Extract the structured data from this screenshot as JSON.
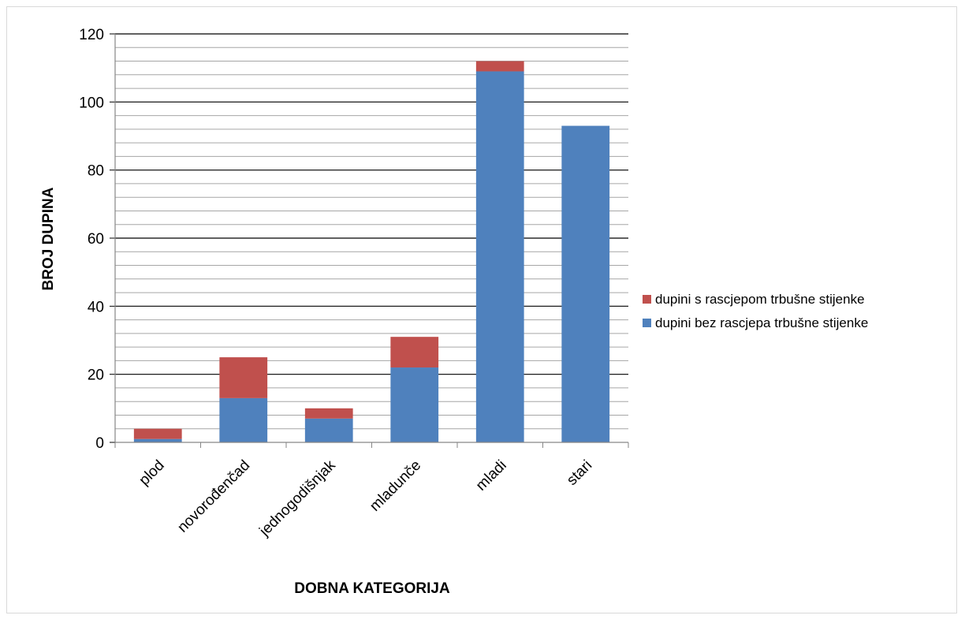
{
  "chart_data": {
    "type": "bar",
    "stacked": true,
    "categories": [
      "plod",
      "novorođenčad",
      "jednogodišnjak",
      "mladunče",
      "mladi",
      "stari"
    ],
    "series": [
      {
        "name": "dupini bez rascjepa trbušne stijenke",
        "color": "#4f81bd",
        "values": [
          1,
          13,
          7,
          22,
          109,
          93
        ]
      },
      {
        "name": "dupini s rascjepom trbušne stijenke",
        "color": "#c0504d",
        "values": [
          3,
          12,
          3,
          9,
          3,
          0
        ]
      }
    ],
    "title": "",
    "xlabel": "DOBNA KATEGORIJA",
    "ylabel": "BROJ DUPINA",
    "ylim": [
      0,
      120
    ],
    "y_major_ticks": [
      0,
      20,
      40,
      60,
      80,
      100,
      120
    ],
    "y_minor_step": 4,
    "grid": true,
    "legend_position": "right",
    "legend_order": [
      "dupini s rascjepom trbušne stijenke",
      "dupini bez rascjepa trbušne stijenke"
    ]
  }
}
